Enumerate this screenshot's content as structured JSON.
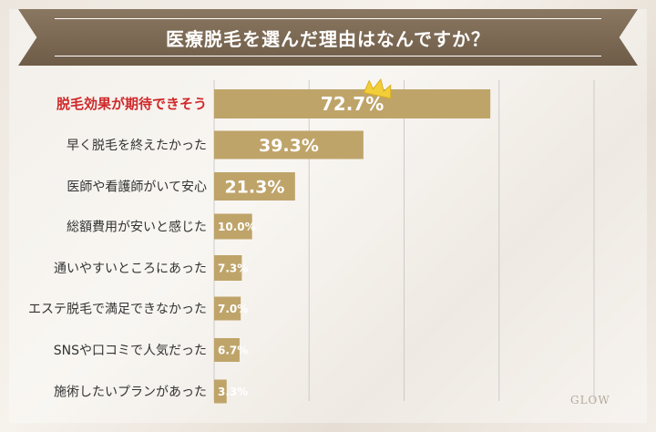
{
  "chart_data": {
    "type": "bar",
    "orientation": "horizontal",
    "title": "医療脱毛を選んだ理由はなんですか？",
    "categories": [
      "脱毛効果が期待できそう",
      "早く脱毛を終えたかった",
      "医師や看護師がいて安心",
      "総額費用が安いと感じた",
      "通いやすいところにあった",
      "エステ脱毛で満足できなかった",
      "SNSや口コミで人気だった",
      "施術したいプランがあった"
    ],
    "values": [
      72.7,
      39.3,
      21.3,
      10.0,
      7.3,
      7.0,
      6.7,
      3.3
    ],
    "value_labels": [
      "72.7%",
      "39.3%",
      "21.3%",
      "10.0%",
      "7.3%",
      "7.0%",
      "6.7%",
      "3.3%"
    ],
    "xlim": [
      0,
      100
    ],
    "grid": true,
    "highlight_index": 0,
    "colors": {
      "bar": "#bfa46a",
      "highlight_text": "#d0282a",
      "title_bg": "#7b6853",
      "grid": "#cccccc",
      "crown": "#f2cf3a"
    }
  },
  "watermark": "GLOW"
}
